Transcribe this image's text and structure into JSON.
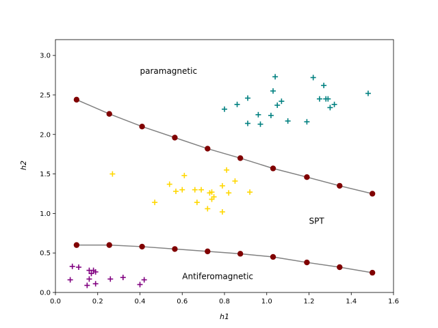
{
  "chart_data": {
    "type": "scatter",
    "title": "",
    "xlabel": "h1",
    "ylabel": "h2",
    "xlim": [
      0.0,
      1.6
    ],
    "ylim": [
      0.0,
      3.2
    ],
    "xticks": [
      "0.0",
      "0.2",
      "0.4",
      "0.6",
      "0.8",
      "1.0",
      "1.2",
      "1.4",
      "1.6"
    ],
    "yticks": [
      "0.0",
      "0.5",
      "1.0",
      "1.5",
      "2.0",
      "2.5",
      "3.0"
    ],
    "grid": false,
    "annotations": [
      {
        "text": "paramagnetic",
        "x": 0.4,
        "y": 2.82
      },
      {
        "text": "SPT",
        "x": 1.2,
        "y": 0.92
      },
      {
        "text": "Antiferomagnetic",
        "x": 0.6,
        "y": 0.22
      }
    ],
    "boundaries": [
      {
        "color": "#808080",
        "marker_color": "#800000",
        "x": [
          0.1,
          0.255,
          0.41,
          0.565,
          0.72,
          0.875,
          1.03,
          1.19,
          1.345,
          1.5
        ],
        "y": [
          2.44,
          2.26,
          2.1,
          1.96,
          1.82,
          1.7,
          1.57,
          1.46,
          1.35,
          1.25
        ]
      },
      {
        "color": "#808080",
        "marker_color": "#800000",
        "x": [
          0.1,
          0.255,
          0.41,
          0.565,
          0.72,
          0.875,
          1.03,
          1.19,
          1.345,
          1.5
        ],
        "y": [
          0.6,
          0.6,
          0.58,
          0.55,
          0.52,
          0.49,
          0.45,
          0.38,
          0.32,
          0.25
        ]
      }
    ],
    "series": [
      {
        "color": "#008080",
        "marker": "+",
        "x": [
          0.8,
          0.86,
          0.91,
          0.96,
          0.97,
          1.02,
          1.03,
          1.04,
          1.05,
          1.07,
          1.1,
          1.19,
          1.22,
          1.25,
          1.27,
          1.28,
          1.29,
          1.3,
          1.32,
          1.48,
          0.91
        ],
        "y": [
          2.32,
          2.38,
          2.46,
          2.25,
          2.13,
          2.24,
          2.55,
          2.73,
          2.37,
          2.42,
          2.17,
          2.16,
          2.72,
          2.45,
          2.62,
          2.45,
          2.45,
          2.34,
          2.38,
          2.52,
          2.14
        ]
      },
      {
        "color": "#ffd700",
        "marker": "+",
        "x": [
          0.27,
          0.47,
          0.54,
          0.57,
          0.6,
          0.61,
          0.66,
          0.67,
          0.69,
          0.72,
          0.73,
          0.74,
          0.74,
          0.75,
          0.79,
          0.79,
          0.81,
          0.82,
          0.85,
          0.92
        ],
        "y": [
          1.5,
          1.14,
          1.37,
          1.28,
          1.3,
          1.48,
          1.3,
          1.14,
          1.3,
          1.06,
          1.26,
          1.18,
          1.27,
          1.21,
          1.35,
          1.02,
          1.55,
          1.26,
          1.41,
          1.27
        ]
      },
      {
        "color": "#800080",
        "marker": "+",
        "x": [
          0.07,
          0.08,
          0.11,
          0.15,
          0.16,
          0.16,
          0.17,
          0.18,
          0.19,
          0.19,
          0.26,
          0.32,
          0.4,
          0.42
        ],
        "y": [
          0.16,
          0.33,
          0.32,
          0.09,
          0.17,
          0.28,
          0.24,
          0.28,
          0.26,
          0.11,
          0.17,
          0.19,
          0.1,
          0.16
        ]
      }
    ]
  }
}
